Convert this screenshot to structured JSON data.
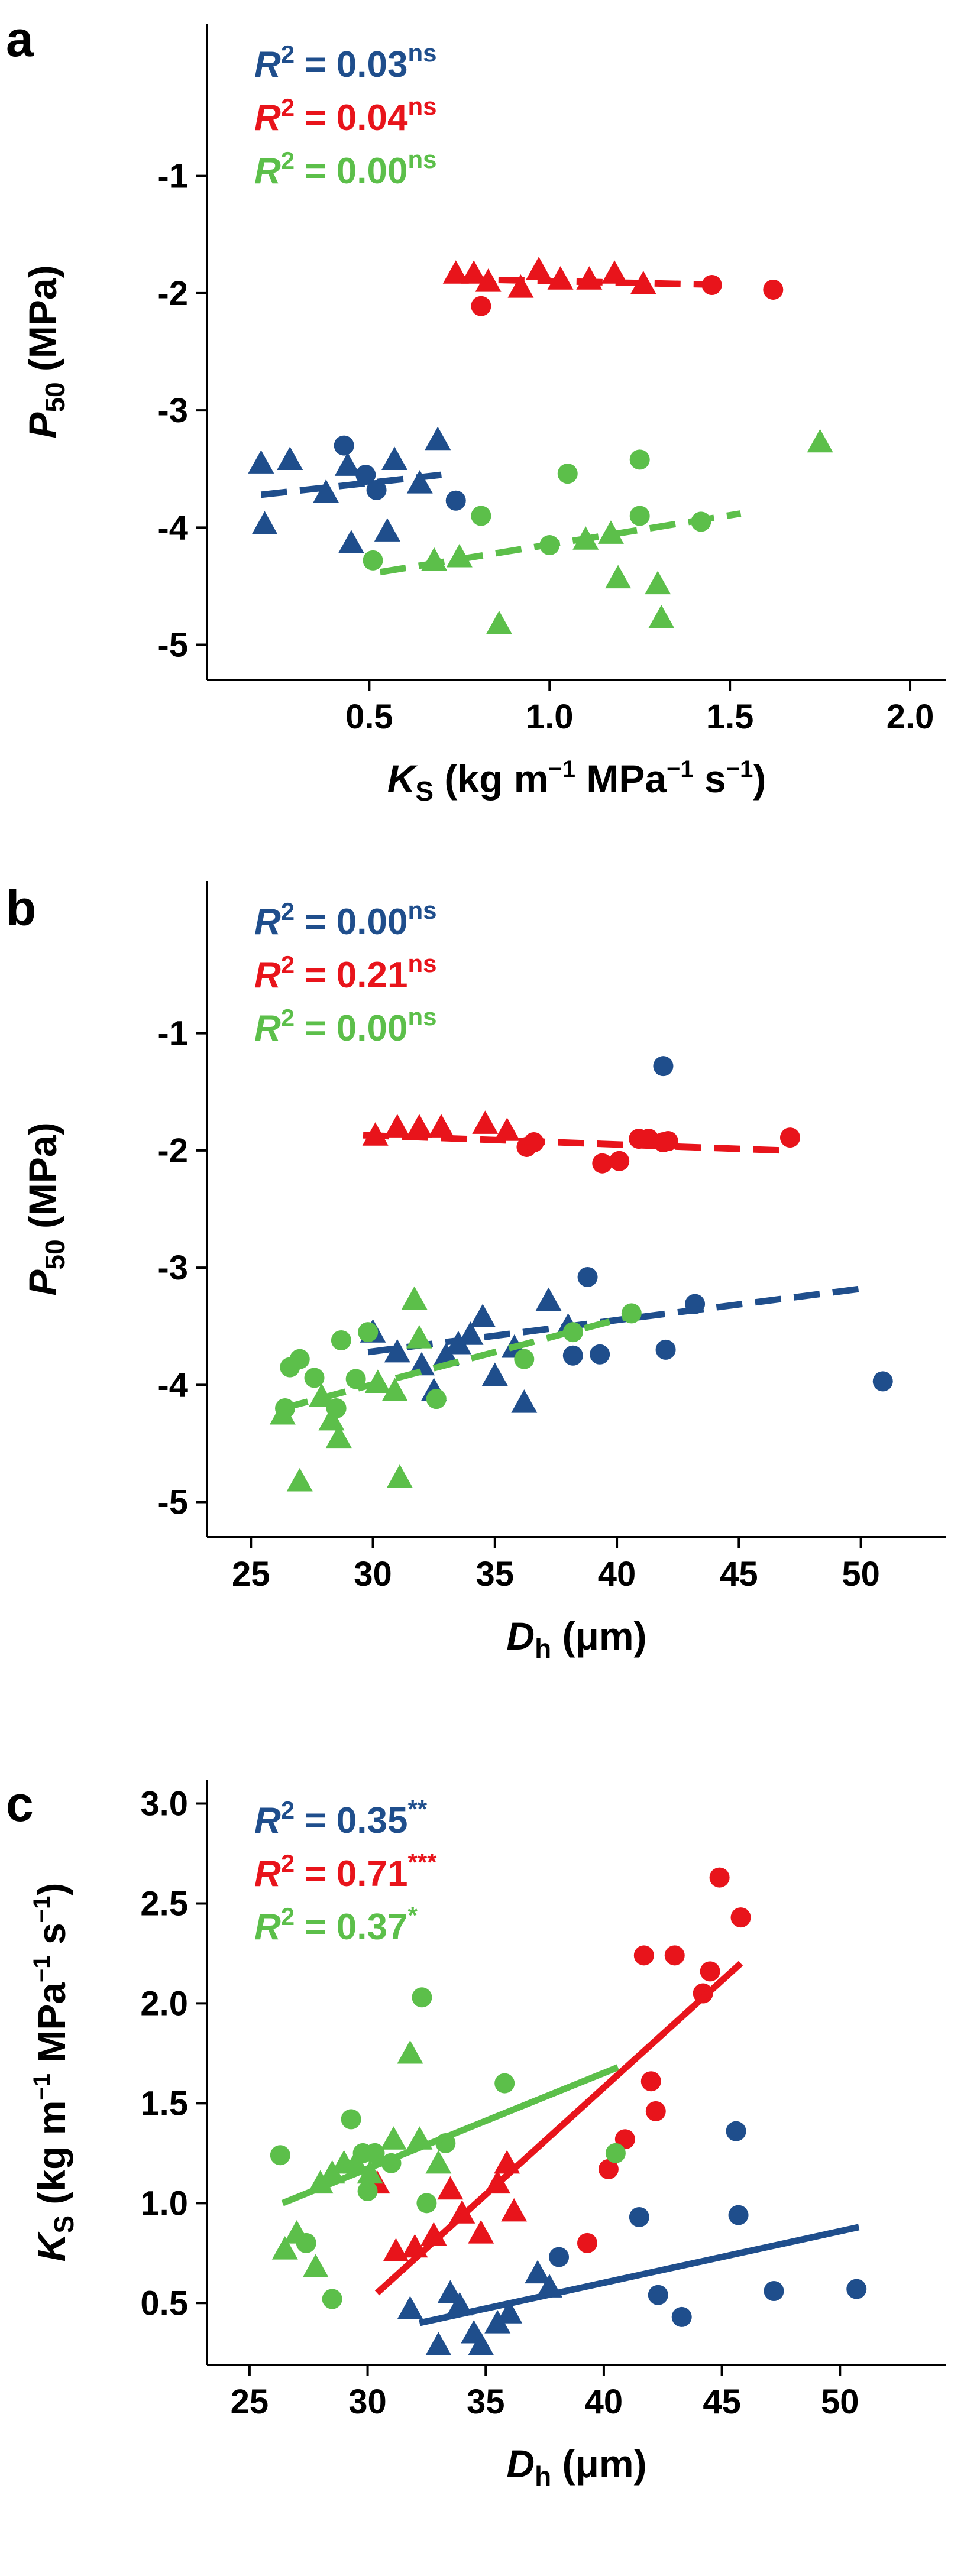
{
  "colors": {
    "blue": "#1F4E8C",
    "red": "#E8141B",
    "green": "#5CBF4A",
    "axis": "#000000"
  },
  "chart_data": [
    {
      "panel_label": "a",
      "type": "scatter",
      "xlabel": {
        "main": "K",
        "sub": "S",
        "rest": " (kg m",
        "u1": "−1",
        "mid": " MPa",
        "u2": "−1",
        "tail": " s",
        "u3": "−1",
        "close": ")"
      },
      "ylabel": {
        "main": "P",
        "sub": "50",
        "rest": " (MPa)"
      },
      "xlim": [
        0.05,
        2.1
      ],
      "ylim": [
        -5.3,
        0.3
      ],
      "xticks": [
        0.5,
        1.0,
        1.5,
        2.0
      ],
      "xticklabels": [
        "0.5",
        "1.0",
        "1.5",
        "2.0"
      ],
      "yticks": [
        -5,
        -4,
        -3,
        -2,
        -1
      ],
      "yticklabels": [
        "-5",
        "-4",
        "-3",
        "-2",
        "-1"
      ],
      "annotations": [
        {
          "color": "blue",
          "r2": "0.03",
          "sig": "ns"
        },
        {
          "color": "red",
          "r2": "0.04",
          "sig": "ns"
        },
        {
          "color": "green",
          "r2": "0.00",
          "sig": "ns"
        }
      ],
      "series": [
        {
          "color": "blue",
          "triangles": [
            [
              0.2,
              -3.45
            ],
            [
              0.28,
              -3.42
            ],
            [
              0.21,
              -3.97
            ],
            [
              0.38,
              -3.7
            ],
            [
              0.44,
              -3.47
            ],
            [
              0.45,
              -4.13
            ],
            [
              0.55,
              -4.03
            ],
            [
              0.57,
              -3.42
            ],
            [
              0.64,
              -3.62
            ],
            [
              0.69,
              -3.25
            ]
          ],
          "circles": [
            [
              0.43,
              -3.3
            ],
            [
              0.49,
              -3.55
            ],
            [
              0.52,
              -3.68
            ],
            [
              0.74,
              -3.77
            ]
          ],
          "fit": {
            "style": "dashed",
            "x": [
              0.2,
              0.7
            ],
            "y": [
              -3.72,
              -3.55
            ]
          }
        },
        {
          "color": "red",
          "triangles": [
            [
              0.74,
              -1.83
            ],
            [
              0.79,
              -1.83
            ],
            [
              0.83,
              -1.9
            ],
            [
              0.92,
              -1.95
            ],
            [
              0.97,
              -1.8
            ],
            [
              1.03,
              -1.88
            ],
            [
              1.11,
              -1.88
            ],
            [
              1.18,
              -1.83
            ],
            [
              1.26,
              -1.92
            ]
          ],
          "circles": [
            [
              0.81,
              -2.11
            ],
            [
              1.45,
              -1.93
            ],
            [
              1.62,
              -1.97
            ]
          ],
          "fit": {
            "style": "dashed",
            "x": [
              0.75,
              1.5
            ],
            "y": [
              -1.88,
              -1.93
            ]
          }
        },
        {
          "color": "green",
          "triangles": [
            [
              0.68,
              -4.28
            ],
            [
              0.75,
              -4.25
            ],
            [
              0.86,
              -4.82
            ],
            [
              1.1,
              -4.1
            ],
            [
              1.17,
              -4.05
            ],
            [
              1.19,
              -4.43
            ],
            [
              1.3,
              -4.48
            ],
            [
              1.31,
              -4.77
            ],
            [
              1.75,
              -3.27
            ]
          ],
          "circles": [
            [
              0.51,
              -4.28
            ],
            [
              0.81,
              -3.9
            ],
            [
              1.0,
              -4.15
            ],
            [
              1.05,
              -3.54
            ],
            [
              1.25,
              -3.42
            ],
            [
              1.25,
              -3.9
            ],
            [
              1.42,
              -3.95
            ]
          ],
          "fit": {
            "style": "dashed",
            "x": [
              0.53,
              1.53
            ],
            "y": [
              -4.38,
              -3.88
            ]
          }
        }
      ]
    },
    {
      "panel_label": "b",
      "type": "scatter",
      "xlabel": {
        "main": "D",
        "sub": "h",
        "rest": " (μm)"
      },
      "ylabel": {
        "main": "P",
        "sub": "50",
        "rest": " (MPa)"
      },
      "xlim": [
        23.2,
        53.5
      ],
      "ylim": [
        -5.3,
        0.3
      ],
      "xticks": [
        25,
        30,
        35,
        40,
        45,
        50
      ],
      "xticklabels": [
        "25",
        "30",
        "35",
        "40",
        "45",
        "50"
      ],
      "yticks": [
        -5,
        -4,
        -3,
        -2,
        -1
      ],
      "yticklabels": [
        "-5",
        "-4",
        "-3",
        "-2",
        "-1"
      ],
      "annotations": [
        {
          "color": "blue",
          "r2": "0.00",
          "sig": "ns"
        },
        {
          "color": "red",
          "r2": "0.21",
          "sig": "ns"
        },
        {
          "color": "green",
          "r2": "0.00",
          "sig": "ns"
        }
      ],
      "series": [
        {
          "color": "blue",
          "triangles": [
            [
              30.0,
              -3.55
            ],
            [
              31.0,
              -3.72
            ],
            [
              32.0,
              -3.83
            ],
            [
              33.0,
              -3.75
            ],
            [
              33.5,
              -3.65
            ],
            [
              34.0,
              -3.57
            ],
            [
              34.5,
              -3.42
            ],
            [
              35.0,
              -3.92
            ],
            [
              35.8,
              -3.68
            ],
            [
              36.2,
              -4.15
            ],
            [
              37.2,
              -3.28
            ],
            [
              38.0,
              -3.5
            ],
            [
              32.5,
              -4.05
            ]
          ],
          "circles": [
            [
              38.2,
              -3.75
            ],
            [
              38.8,
              -3.08
            ],
            [
              39.3,
              -3.74
            ],
            [
              41.9,
              -1.28
            ],
            [
              42.0,
              -3.7
            ],
            [
              43.2,
              -3.31
            ],
            [
              50.9,
              -3.97
            ]
          ],
          "fit": {
            "style": "dashed",
            "x": [
              29.8,
              50.0
            ],
            "y": [
              -3.72,
              -3.18
            ]
          }
        },
        {
          "color": "red",
          "triangles": [
            [
              30.1,
              -1.87
            ],
            [
              31.0,
              -1.8
            ],
            [
              31.9,
              -1.8
            ],
            [
              32.8,
              -1.8
            ],
            [
              34.6,
              -1.77
            ],
            [
              35.5,
              -1.83
            ]
          ],
          "circles": [
            [
              36.3,
              -1.97
            ],
            [
              36.6,
              -1.93
            ],
            [
              39.4,
              -2.11
            ],
            [
              40.1,
              -2.09
            ],
            [
              40.9,
              -1.9
            ],
            [
              41.3,
              -1.9
            ],
            [
              41.9,
              -1.93
            ],
            [
              42.1,
              -1.92
            ],
            [
              47.1,
              -1.89
            ]
          ],
          "fit": {
            "style": "dashed",
            "x": [
              29.6,
              46.8
            ],
            "y": [
              -1.87,
              -2.0
            ]
          }
        },
        {
          "color": "green",
          "triangles": [
            [
              26.3,
              -4.25
            ],
            [
              27.0,
              -4.82
            ],
            [
              27.9,
              -4.1
            ],
            [
              28.3,
              -4.3
            ],
            [
              28.6,
              -4.45
            ],
            [
              30.2,
              -3.98
            ],
            [
              30.9,
              -4.05
            ],
            [
              31.1,
              -4.79
            ],
            [
              31.7,
              -3.27
            ],
            [
              31.9,
              -3.6
            ]
          ],
          "circles": [
            [
              26.4,
              -4.2
            ],
            [
              26.6,
              -3.85
            ],
            [
              27.0,
              -3.78
            ],
            [
              27.6,
              -3.94
            ],
            [
              28.5,
              -4.2
            ],
            [
              28.7,
              -3.62
            ],
            [
              29.3,
              -3.95
            ],
            [
              29.8,
              -3.55
            ],
            [
              32.6,
              -4.12
            ],
            [
              36.2,
              -3.78
            ],
            [
              38.2,
              -3.55
            ],
            [
              40.6,
              -3.39
            ]
          ],
          "fit": {
            "style": "dashed",
            "x": [
              26.3,
              40.8
            ],
            "y": [
              -4.2,
              -3.4
            ]
          }
        }
      ]
    },
    {
      "panel_label": "c",
      "type": "scatter",
      "xlabel": {
        "main": "D",
        "sub": "h",
        "rest": " (μm)"
      },
      "ylabel": {
        "main": "K",
        "sub": "S",
        "rest": " (kg m",
        "u1": "−1",
        "mid": " MPa",
        "u2": "−1",
        "tail": " s",
        "u3": "−1",
        "close": ")"
      },
      "xlim": [
        23.2,
        54.5
      ],
      "ylim": [
        0.19,
        3.12
      ],
      "xticks": [
        25,
        30,
        35,
        40,
        45,
        50
      ],
      "xticklabels": [
        "25",
        "30",
        "35",
        "40",
        "45",
        "50"
      ],
      "yticks": [
        0.5,
        1.0,
        1.5,
        2.0,
        2.5,
        3.0
      ],
      "yticklabels": [
        "0.5",
        "1.0",
        "1.5",
        "2.0",
        "2.5",
        "3.0"
      ],
      "annotations": [
        {
          "color": "blue",
          "r2": "0.35",
          "sig": "**"
        },
        {
          "color": "red",
          "r2": "0.71",
          "sig": "***"
        },
        {
          "color": "green",
          "r2": "0.37",
          "sig": "*"
        }
      ],
      "series": [
        {
          "color": "blue",
          "triangles": [
            [
              31.8,
              0.47
            ],
            [
              33.0,
              0.29
            ],
            [
              33.5,
              0.55
            ],
            [
              34.5,
              0.35
            ],
            [
              34.8,
              0.29
            ],
            [
              35.5,
              0.4
            ],
            [
              36.0,
              0.45
            ],
            [
              37.2,
              0.65
            ],
            [
              37.7,
              0.58
            ],
            [
              33.9,
              0.49
            ]
          ],
          "circles": [
            [
              38.1,
              0.73
            ],
            [
              41.5,
              0.93
            ],
            [
              42.3,
              0.54
            ],
            [
              43.3,
              0.43
            ],
            [
              45.6,
              1.36
            ],
            [
              45.7,
              0.94
            ],
            [
              47.2,
              0.56
            ],
            [
              50.7,
              0.57
            ]
          ],
          "fit": {
            "style": "solid",
            "x": [
              32.2,
              50.8
            ],
            "y": [
              0.4,
              0.88
            ]
          }
        },
        {
          "color": "red",
          "triangles": [
            [
              30.4,
              1.1
            ],
            [
              31.2,
              0.76
            ],
            [
              32.0,
              0.78
            ],
            [
              32.8,
              0.84
            ],
            [
              33.5,
              1.07
            ],
            [
              34.0,
              0.95
            ],
            [
              34.8,
              0.85
            ],
            [
              35.5,
              1.1
            ],
            [
              35.9,
              1.2
            ],
            [
              36.2,
              0.96
            ]
          ],
          "circles": [
            [
              39.3,
              0.8
            ],
            [
              40.2,
              1.17
            ],
            [
              40.9,
              1.32
            ],
            [
              41.7,
              2.24
            ],
            [
              42.0,
              1.61
            ],
            [
              42.2,
              1.46
            ],
            [
              43.0,
              2.24
            ],
            [
              44.2,
              2.05
            ],
            [
              44.5,
              2.16
            ],
            [
              44.9,
              2.63
            ],
            [
              45.8,
              2.43
            ]
          ],
          "fit": {
            "style": "solid",
            "x": [
              30.4,
              45.8
            ],
            "y": [
              0.55,
              2.2
            ]
          }
        },
        {
          "color": "green",
          "triangles": [
            [
              26.5,
              0.77
            ],
            [
              27.0,
              0.85
            ],
            [
              27.8,
              0.68
            ],
            [
              28.0,
              1.1
            ],
            [
              28.5,
              1.15
            ],
            [
              29.0,
              1.2
            ],
            [
              29.5,
              1.2
            ],
            [
              30.1,
              1.15
            ],
            [
              31.1,
              1.32
            ],
            [
              31.8,
              1.75
            ],
            [
              32.2,
              1.32
            ],
            [
              33.0,
              1.2
            ]
          ],
          "circles": [
            [
              26.3,
              1.24
            ],
            [
              27.4,
              0.8
            ],
            [
              28.5,
              0.52
            ],
            [
              29.3,
              1.42
            ],
            [
              29.8,
              1.25
            ],
            [
              30.0,
              1.06
            ],
            [
              30.3,
              1.25
            ],
            [
              31.0,
              1.2
            ],
            [
              32.3,
              2.03
            ],
            [
              32.5,
              1.0
            ],
            [
              33.3,
              1.3
            ],
            [
              35.8,
              1.6
            ],
            [
              40.5,
              1.25
            ]
          ],
          "fit": {
            "style": "solid",
            "x": [
              26.4,
              40.6
            ],
            "y": [
              1.0,
              1.68
            ]
          }
        }
      ]
    }
  ]
}
